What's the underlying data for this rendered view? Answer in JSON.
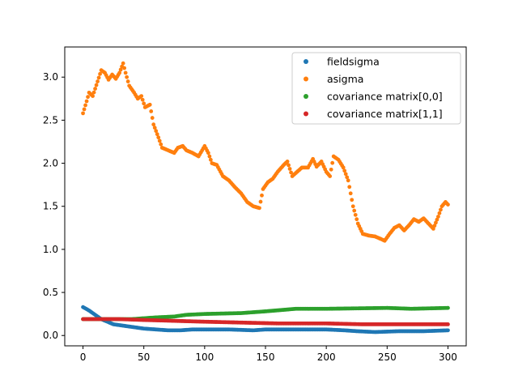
{
  "chart_data": {
    "type": "scatter",
    "title": "",
    "xlabel": "",
    "ylabel": "",
    "xlim": [
      -15,
      315
    ],
    "ylim": [
      -0.12,
      3.35
    ],
    "xticks": [
      0,
      50,
      100,
      150,
      200,
      250,
      300
    ],
    "xtick_labels": [
      "0",
      "50",
      "100",
      "150",
      "200",
      "250",
      "300"
    ],
    "yticks": [
      0.0,
      0.5,
      1.0,
      1.5,
      2.0,
      2.5,
      3.0
    ],
    "ytick_labels": [
      "0.0",
      "0.5",
      "1.0",
      "1.5",
      "2.0",
      "2.5",
      "3.0"
    ],
    "grid": false,
    "legend_position": "upper right",
    "series": [
      {
        "name": "fieldsigma",
        "color": "#1f77b4",
        "anchors": [
          [
            0,
            0.33
          ],
          [
            5,
            0.29
          ],
          [
            10,
            0.24
          ],
          [
            15,
            0.19
          ],
          [
            20,
            0.16
          ],
          [
            25,
            0.13
          ],
          [
            30,
            0.12
          ],
          [
            40,
            0.1
          ],
          [
            50,
            0.08
          ],
          [
            60,
            0.07
          ],
          [
            70,
            0.06
          ],
          [
            80,
            0.06
          ],
          [
            90,
            0.07
          ],
          [
            100,
            0.07
          ],
          [
            120,
            0.07
          ],
          [
            140,
            0.06
          ],
          [
            150,
            0.07
          ],
          [
            170,
            0.07
          ],
          [
            200,
            0.07
          ],
          [
            215,
            0.06
          ],
          [
            225,
            0.05
          ],
          [
            240,
            0.04
          ],
          [
            260,
            0.05
          ],
          [
            280,
            0.05
          ],
          [
            300,
            0.06
          ]
        ]
      },
      {
        "name": "asigma",
        "color": "#ff7f0e",
        "anchors": [
          [
            0,
            2.58
          ],
          [
            3,
            2.72
          ],
          [
            5,
            2.82
          ],
          [
            8,
            2.78
          ],
          [
            12,
            2.95
          ],
          [
            15,
            3.08
          ],
          [
            18,
            3.05
          ],
          [
            21,
            2.97
          ],
          [
            24,
            3.03
          ],
          [
            27,
            2.98
          ],
          [
            30,
            3.05
          ],
          [
            33,
            3.16
          ],
          [
            35,
            3.05
          ],
          [
            38,
            2.9
          ],
          [
            42,
            2.82
          ],
          [
            45,
            2.75
          ],
          [
            48,
            2.78
          ],
          [
            51,
            2.65
          ],
          [
            55,
            2.68
          ],
          [
            58,
            2.45
          ],
          [
            62,
            2.3
          ],
          [
            65,
            2.18
          ],
          [
            70,
            2.15
          ],
          [
            75,
            2.12
          ],
          [
            78,
            2.18
          ],
          [
            82,
            2.2
          ],
          [
            85,
            2.15
          ],
          [
            90,
            2.12
          ],
          [
            95,
            2.08
          ],
          [
            100,
            2.2
          ],
          [
            103,
            2.12
          ],
          [
            106,
            2.0
          ],
          [
            110,
            1.98
          ],
          [
            115,
            1.85
          ],
          [
            120,
            1.8
          ],
          [
            125,
            1.72
          ],
          [
            130,
            1.65
          ],
          [
            135,
            1.55
          ],
          [
            140,
            1.5
          ],
          [
            145,
            1.48
          ],
          [
            148,
            1.7
          ],
          [
            152,
            1.78
          ],
          [
            156,
            1.82
          ],
          [
            160,
            1.9
          ],
          [
            165,
            1.98
          ],
          [
            168,
            2.02
          ],
          [
            172,
            1.85
          ],
          [
            176,
            1.9
          ],
          [
            180,
            1.95
          ],
          [
            185,
            1.95
          ],
          [
            189,
            2.05
          ],
          [
            192,
            1.96
          ],
          [
            196,
            2.02
          ],
          [
            200,
            1.9
          ],
          [
            203,
            1.85
          ],
          [
            206,
            2.08
          ],
          [
            210,
            2.04
          ],
          [
            214,
            1.95
          ],
          [
            218,
            1.8
          ],
          [
            222,
            1.5
          ],
          [
            226,
            1.3
          ],
          [
            230,
            1.18
          ],
          [
            235,
            1.16
          ],
          [
            240,
            1.15
          ],
          [
            245,
            1.12
          ],
          [
            248,
            1.1
          ],
          [
            252,
            1.18
          ],
          [
            256,
            1.25
          ],
          [
            260,
            1.28
          ],
          [
            264,
            1.22
          ],
          [
            268,
            1.28
          ],
          [
            272,
            1.35
          ],
          [
            276,
            1.32
          ],
          [
            280,
            1.36
          ],
          [
            284,
            1.3
          ],
          [
            288,
            1.24
          ],
          [
            292,
            1.38
          ],
          [
            295,
            1.5
          ],
          [
            298,
            1.55
          ],
          [
            300,
            1.52
          ]
        ]
      },
      {
        "name": "covariance matrix[0,0]",
        "color": "#2ca02c",
        "anchors": [
          [
            0,
            0.19
          ],
          [
            20,
            0.19
          ],
          [
            40,
            0.19
          ],
          [
            50,
            0.2
          ],
          [
            60,
            0.21
          ],
          [
            75,
            0.22
          ],
          [
            85,
            0.24
          ],
          [
            100,
            0.25
          ],
          [
            130,
            0.26
          ],
          [
            150,
            0.28
          ],
          [
            175,
            0.31
          ],
          [
            200,
            0.31
          ],
          [
            250,
            0.32
          ],
          [
            270,
            0.31
          ],
          [
            300,
            0.32
          ]
        ]
      },
      {
        "name": "covariance matrix[1,1]",
        "color": "#d62728",
        "anchors": [
          [
            0,
            0.19
          ],
          [
            30,
            0.19
          ],
          [
            50,
            0.18
          ],
          [
            75,
            0.17
          ],
          [
            100,
            0.16
          ],
          [
            130,
            0.15
          ],
          [
            160,
            0.14
          ],
          [
            200,
            0.14
          ],
          [
            230,
            0.13
          ],
          [
            260,
            0.13
          ],
          [
            300,
            0.13
          ]
        ]
      }
    ]
  }
}
